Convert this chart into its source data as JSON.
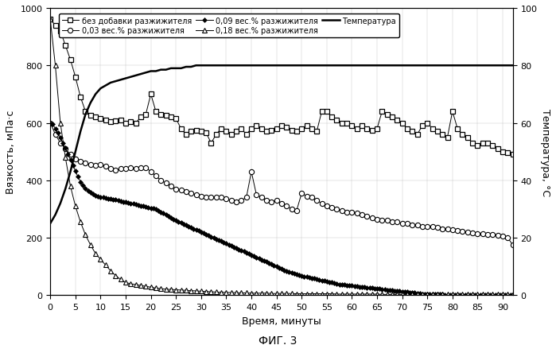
{
  "title": "",
  "xlabel": "Время, минуты",
  "ylabel_left": "Вязкость, мПа·с",
  "ylabel_right": "Температура, °С",
  "fig_caption": "ФИГ. 3",
  "xlim": [
    0,
    92
  ],
  "ylim_left": [
    0,
    1000
  ],
  "ylim_right": [
    0,
    100
  ],
  "xticks": [
    0,
    5,
    10,
    15,
    20,
    25,
    30,
    35,
    40,
    45,
    50,
    55,
    60,
    65,
    70,
    75,
    80,
    85,
    90
  ],
  "yticks_left": [
    0,
    200,
    400,
    600,
    800,
    1000
  ],
  "yticks_right": [
    0,
    20,
    40,
    60,
    80,
    100
  ],
  "legend_labels": [
    "без добавки разжижителя",
    "0,03 вес.% разжижителя",
    "0,09 вес.% разжижителя",
    "0,18 вес.% разжижителя",
    "Температура"
  ],
  "series_no_additive": {
    "t": [
      0,
      1,
      2,
      3,
      4,
      5,
      6,
      7,
      8,
      9,
      10,
      11,
      12,
      13,
      14,
      15,
      16,
      17,
      18,
      19,
      20,
      21,
      22,
      23,
      24,
      25,
      26,
      27,
      28,
      29,
      30,
      31,
      32,
      33,
      34,
      35,
      36,
      37,
      38,
      39,
      40,
      41,
      42,
      43,
      44,
      45,
      46,
      47,
      48,
      49,
      50,
      51,
      52,
      53,
      54,
      55,
      56,
      57,
      58,
      59,
      60,
      61,
      62,
      63,
      64,
      65,
      66,
      67,
      68,
      69,
      70,
      71,
      72,
      73,
      74,
      75,
      76,
      77,
      78,
      79,
      80,
      81,
      82,
      83,
      84,
      85,
      86,
      87,
      88,
      89,
      90,
      91,
      92
    ],
    "v": [
      960,
      940,
      920,
      870,
      820,
      760,
      690,
      640,
      625,
      620,
      615,
      610,
      605,
      608,
      610,
      600,
      605,
      600,
      620,
      630,
      700,
      640,
      630,
      625,
      620,
      615,
      580,
      560,
      570,
      575,
      570,
      565,
      530,
      560,
      580,
      570,
      560,
      570,
      580,
      560,
      580,
      590,
      580,
      570,
      575,
      580,
      590,
      585,
      575,
      570,
      580,
      590,
      580,
      570,
      640,
      640,
      620,
      610,
      600,
      600,
      590,
      580,
      590,
      580,
      575,
      580,
      640,
      630,
      620,
      610,
      600,
      580,
      570,
      560,
      590,
      600,
      580,
      570,
      560,
      550,
      640,
      580,
      560,
      550,
      530,
      520,
      530,
      530,
      520,
      510,
      500,
      495,
      490
    ]
  },
  "series_003": {
    "t": [
      0,
      1,
      2,
      3,
      4,
      5,
      6,
      7,
      8,
      9,
      10,
      11,
      12,
      13,
      14,
      15,
      16,
      17,
      18,
      19,
      20,
      21,
      22,
      23,
      24,
      25,
      26,
      27,
      28,
      29,
      30,
      31,
      32,
      33,
      34,
      35,
      36,
      37,
      38,
      39,
      40,
      41,
      42,
      43,
      44,
      45,
      46,
      47,
      48,
      49,
      50,
      51,
      52,
      53,
      54,
      55,
      56,
      57,
      58,
      59,
      60,
      61,
      62,
      63,
      64,
      65,
      66,
      67,
      68,
      69,
      70,
      71,
      72,
      73,
      74,
      75,
      76,
      77,
      78,
      79,
      80,
      81,
      82,
      83,
      84,
      85,
      86,
      87,
      88,
      89,
      90,
      91,
      92
    ],
    "v": [
      600,
      560,
      530,
      510,
      490,
      475,
      465,
      460,
      455,
      452,
      455,
      450,
      440,
      435,
      440,
      442,
      445,
      440,
      445,
      445,
      430,
      415,
      400,
      390,
      380,
      370,
      365,
      360,
      355,
      350,
      345,
      340,
      340,
      340,
      340,
      335,
      330,
      325,
      330,
      340,
      430,
      350,
      340,
      330,
      325,
      330,
      320,
      310,
      300,
      295,
      355,
      345,
      340,
      330,
      320,
      310,
      305,
      300,
      295,
      290,
      290,
      285,
      280,
      275,
      270,
      265,
      260,
      260,
      255,
      255,
      250,
      250,
      245,
      245,
      240,
      240,
      238,
      235,
      232,
      230,
      228,
      225,
      222,
      220,
      218,
      215,
      215,
      212,
      210,
      208,
      205,
      200,
      175
    ]
  },
  "series_009": {
    "t": [
      0,
      0.5,
      1,
      1.5,
      2,
      2.5,
      3,
      3.5,
      4,
      4.5,
      5,
      5.5,
      6,
      6.5,
      7,
      7.5,
      8,
      8.5,
      9,
      9.5,
      10,
      10.5,
      11,
      11.5,
      12,
      12.5,
      13,
      13.5,
      14,
      14.5,
      15,
      15.5,
      16,
      16.5,
      17,
      17.5,
      18,
      18.5,
      19,
      19.5,
      20,
      20.5,
      21,
      21.5,
      22,
      22.5,
      23,
      23.5,
      24,
      24.5,
      25,
      25.5,
      26,
      26.5,
      27,
      27.5,
      28,
      28.5,
      29,
      29.5,
      30,
      30.5,
      31,
      31.5,
      32,
      32.5,
      33,
      33.5,
      34,
      34.5,
      35,
      35.5,
      36,
      36.5,
      37,
      37.5,
      38,
      38.5,
      39,
      39.5,
      40,
      40.5,
      41,
      41.5,
      42,
      42.5,
      43,
      43.5,
      44,
      44.5,
      45,
      45.5,
      46,
      46.5,
      47,
      47.5,
      48,
      48.5,
      49,
      49.5,
      50,
      50.5,
      51,
      51.5,
      52,
      52.5,
      53,
      53.5,
      54,
      54.5,
      55,
      55.5,
      56,
      56.5,
      57,
      57.5,
      58,
      58.5,
      59,
      59.5,
      60,
      60.5,
      61,
      61.5,
      62,
      62.5,
      63,
      63.5,
      64,
      64.5,
      65,
      65.5,
      66,
      66.5,
      67,
      67.5,
      68,
      68.5,
      69,
      69.5,
      70,
      70.5,
      71,
      71.5,
      72,
      72.5,
      73,
      73.5,
      74,
      74.5,
      75,
      75.5,
      76,
      76.5,
      77,
      77.5,
      78,
      78.5,
      79,
      79.5,
      80,
      80.5,
      81,
      81.5,
      82,
      82.5,
      83,
      83.5,
      84,
      84.5,
      85,
      85.5,
      86,
      86.5,
      87,
      87.5,
      88,
      88.5,
      89,
      89.5,
      90,
      90.5,
      91,
      91.5,
      92
    ],
    "v": [
      600,
      595,
      580,
      565,
      548,
      530,
      512,
      492,
      472,
      452,
      432,
      412,
      395,
      382,
      372,
      364,
      357,
      352,
      348,
      345,
      342,
      340,
      338,
      336,
      335,
      333,
      332,
      330,
      328,
      326,
      324,
      322,
      320,
      318,
      316,
      314,
      312,
      310,
      308,
      306,
      304,
      302,
      300,
      295,
      290,
      285,
      280,
      275,
      270,
      265,
      260,
      255,
      252,
      248,
      244,
      240,
      236,
      232,
      228,
      224,
      220,
      216,
      212,
      208,
      204,
      200,
      196,
      192,
      188,
      184,
      180,
      176,
      172,
      168,
      164,
      160,
      156,
      152,
      148,
      144,
      140,
      136,
      132,
      128,
      124,
      120,
      116,
      112,
      108,
      104,
      100,
      96,
      92,
      88,
      85,
      82,
      79,
      76,
      73,
      70,
      68,
      66,
      64,
      62,
      60,
      58,
      56,
      54,
      52,
      50,
      48,
      46,
      44,
      42,
      40,
      38,
      37,
      36,
      35,
      34,
      33,
      32,
      31,
      30,
      29,
      28,
      27,
      26,
      25,
      24,
      23,
      22,
      21,
      20,
      19,
      18,
      17,
      16,
      15,
      14,
      13,
      12,
      11,
      10,
      9,
      8,
      7,
      6,
      5,
      5,
      5,
      4,
      4,
      4,
      3,
      3,
      3,
      2,
      2,
      2,
      2,
      2,
      2,
      1,
      1,
      1,
      1,
      1,
      1,
      1,
      1,
      1,
      1,
      1,
      1,
      1,
      1,
      1,
      1,
      1,
      1,
      1,
      1,
      1,
      1
    ]
  },
  "series_018": {
    "t": [
      0,
      1,
      2,
      3,
      4,
      5,
      6,
      7,
      8,
      9,
      10,
      11,
      12,
      13,
      14,
      15,
      16,
      17,
      18,
      19,
      20,
      21,
      22,
      23,
      24,
      25,
      26,
      27,
      28,
      29,
      30,
      31,
      32,
      33,
      34,
      35,
      36,
      37,
      38,
      39,
      40,
      41,
      42,
      43,
      44,
      45,
      46,
      47,
      48,
      49,
      50,
      51,
      52,
      53,
      54,
      55,
      56,
      57,
      58,
      59,
      60,
      61,
      62,
      63,
      64,
      65,
      66,
      67,
      68,
      69,
      70,
      71,
      72,
      73,
      74,
      75,
      76,
      77,
      78,
      79,
      80,
      81,
      82,
      83,
      84,
      85,
      86,
      87,
      88,
      89,
      90,
      91,
      92
    ],
    "v": [
      960,
      800,
      600,
      480,
      380,
      310,
      255,
      210,
      175,
      145,
      125,
      105,
      85,
      68,
      55,
      44,
      40,
      37,
      34,
      31,
      28,
      25,
      23,
      21,
      20,
      19,
      18,
      17,
      16,
      15,
      14,
      13,
      12,
      11,
      10,
      10,
      9,
      9,
      8,
      8,
      7,
      7,
      7,
      7,
      6,
      6,
      6,
      6,
      6,
      5,
      5,
      5,
      5,
      5,
      5,
      5,
      5,
      4,
      4,
      4,
      4,
      4,
      4,
      4,
      4,
      4,
      3,
      3,
      3,
      3,
      3,
      3,
      3,
      3,
      3,
      3,
      3,
      3,
      3,
      3,
      3,
      3,
      3,
      3,
      3,
      3,
      3,
      3,
      3,
      3,
      3,
      3,
      3
    ]
  },
  "series_temp": {
    "t": [
      0,
      1,
      2,
      3,
      4,
      5,
      6,
      7,
      8,
      9,
      10,
      11,
      12,
      13,
      14,
      15,
      16,
      17,
      18,
      19,
      20,
      21,
      22,
      23,
      24,
      25,
      26,
      27,
      28,
      29,
      30,
      31,
      32,
      33,
      34,
      35,
      36,
      37,
      38,
      39,
      40,
      41,
      42,
      43,
      44,
      45,
      46,
      47,
      48,
      49,
      50,
      51,
      52,
      53,
      54,
      55,
      56,
      57,
      58,
      59,
      60,
      61,
      62,
      63,
      64,
      65,
      66,
      67,
      68,
      69,
      70,
      71,
      72,
      73,
      74,
      75,
      76,
      77,
      78,
      79,
      80,
      81,
      82,
      83,
      84,
      85,
      86,
      87,
      88,
      89,
      90,
      91,
      92
    ],
    "v": [
      25,
      28,
      32,
      37,
      43,
      50,
      57,
      63,
      67,
      70,
      72,
      73,
      74,
      74.5,
      75,
      75.5,
      76,
      76.5,
      77,
      77.5,
      78,
      78,
      78.5,
      78.5,
      79,
      79,
      79,
      79.5,
      79.5,
      80,
      80,
      80,
      80,
      80,
      80,
      80,
      80,
      80,
      80,
      80,
      80,
      80,
      80,
      80,
      80,
      80,
      80,
      80,
      80,
      80,
      80,
      80,
      80,
      80,
      80,
      80,
      80,
      80,
      80,
      80,
      80,
      80,
      80,
      80,
      80,
      80,
      80,
      80,
      80,
      80,
      80,
      80,
      80,
      80,
      80,
      80,
      80,
      80,
      80,
      80,
      80,
      80,
      80,
      80,
      80,
      80,
      80,
      80,
      80,
      80,
      80,
      80,
      80
    ]
  }
}
